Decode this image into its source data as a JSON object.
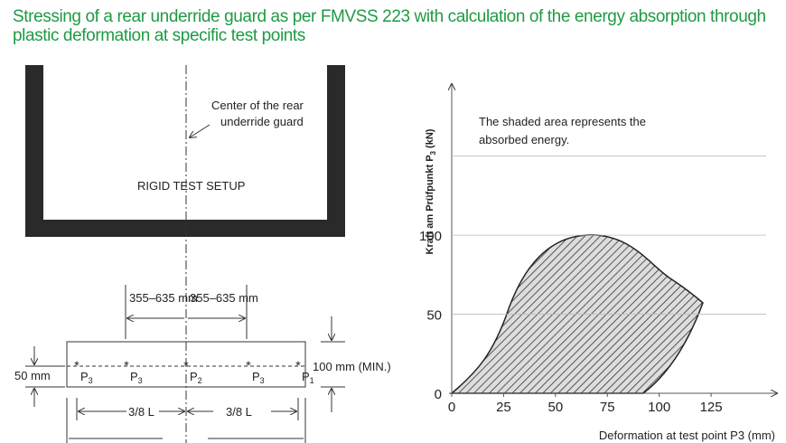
{
  "title": "Stressing of a rear underride guard as per FMVSS 223 with calculation of the energy absorption through plastic deformation at specific test points",
  "setup": {
    "center_label": [
      "Center of the rear",
      "underride guard"
    ],
    "rigid_label": "RIGID TEST SETUP",
    "dim_left": "355–635 mm",
    "dim_right": "355–635 mm",
    "height": "100 mm (MIN.)",
    "offset": "50 mm",
    "span_left": "3/8 L",
    "span_right": "3/8 L",
    "points": [
      {
        "name": "P",
        "index": "3"
      },
      {
        "name": "P",
        "index": "3"
      },
      {
        "name": "P",
        "index": "2"
      },
      {
        "name": "P",
        "index": "3"
      },
      {
        "name": "P",
        "index": "1"
      }
    ]
  },
  "chart": {
    "y_label": {
      "text": "Kraft am Prüfpunkt P",
      "index": "3",
      "unit": " (kN)"
    },
    "x_label": "Deformation at test point P3 (mm)",
    "note": [
      "The shaded area represents the",
      "absorbed energy."
    ],
    "xlim": [
      0,
      155
    ],
    "xticks": [
      0,
      25,
      50,
      75,
      100,
      125
    ],
    "ylim": [
      0,
      195
    ],
    "yticks": [
      0,
      50,
      100
    ],
    "ygrid": [
      50,
      100,
      150
    ]
  }
}
